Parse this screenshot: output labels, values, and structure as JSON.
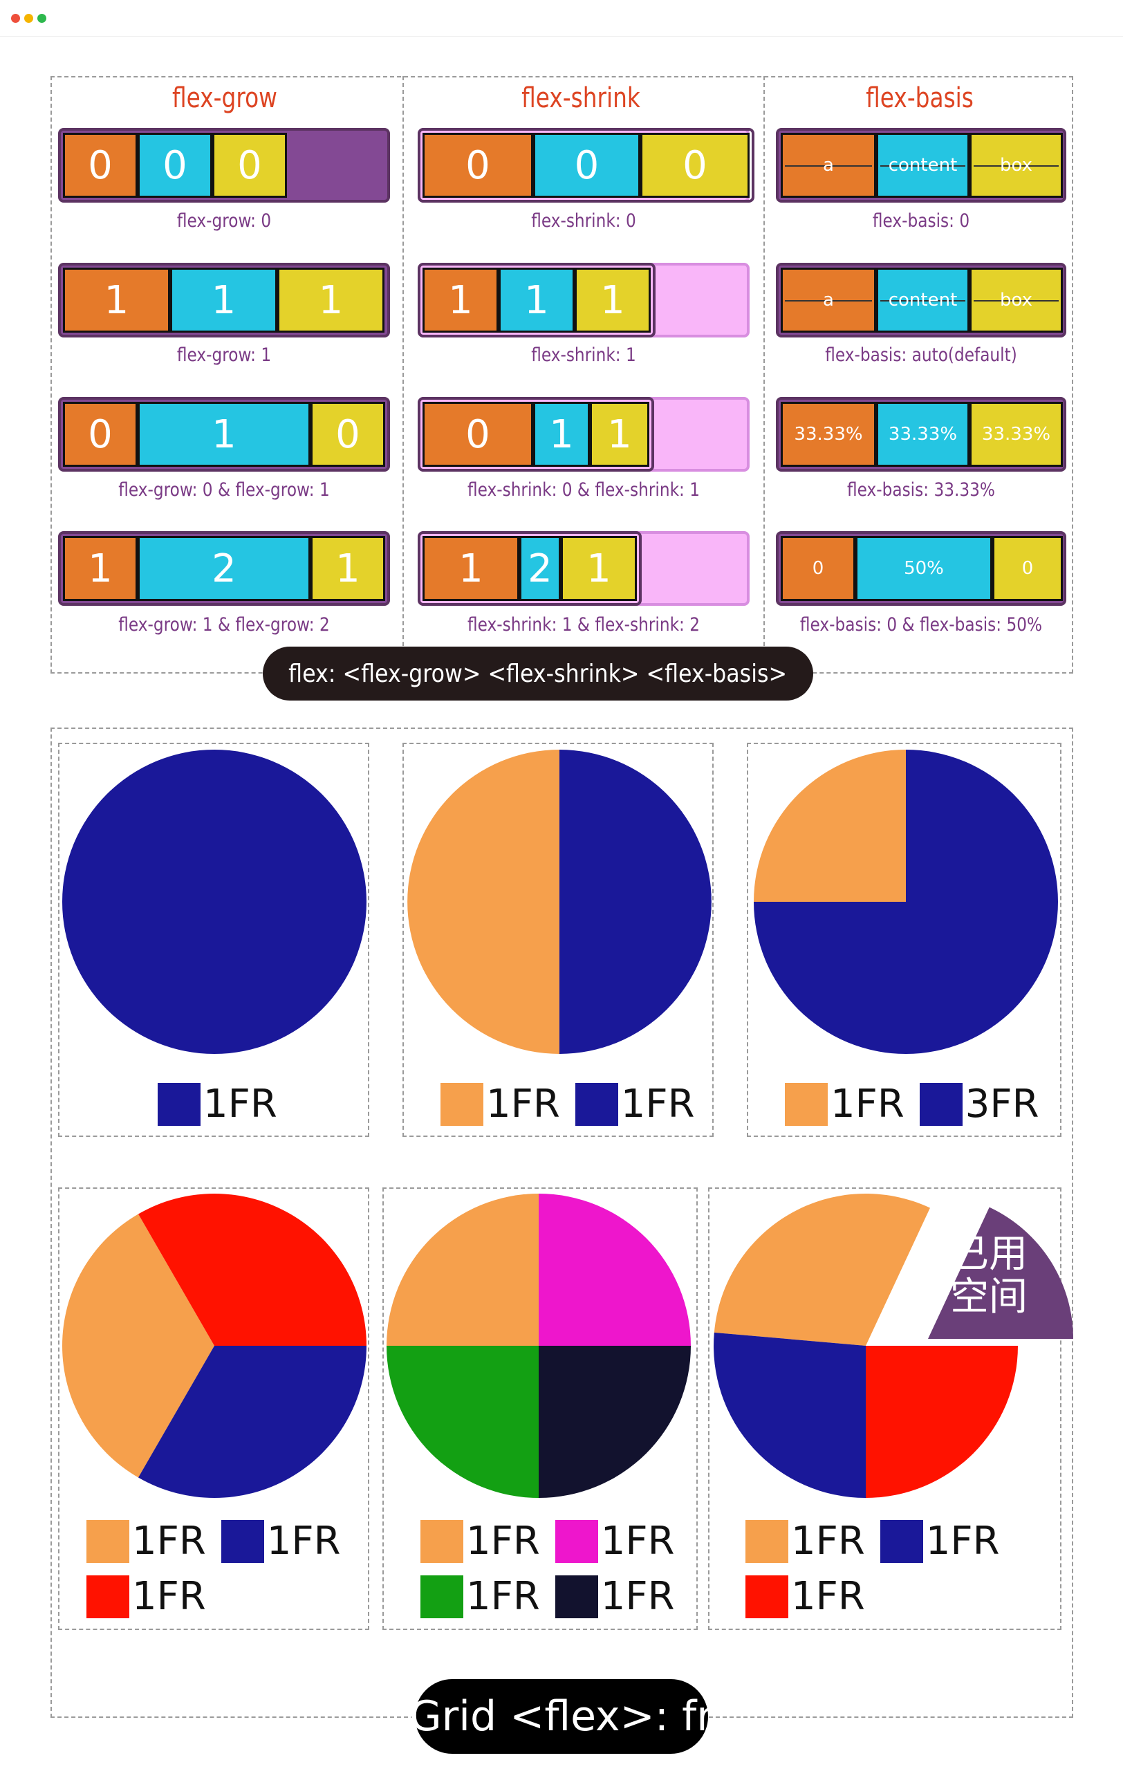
{
  "window": {
    "dots": [
      "#ee4f3b",
      "#f5b400",
      "#2db84d"
    ]
  },
  "flex_panel": {
    "columns": [
      {
        "title": "flex-grow",
        "rows": [
          {
            "caption": "flex-grow: 0",
            "container_fill": "#834994",
            "items": [
              {
                "label": "0",
                "color": "#e57a2a"
              },
              {
                "label": "0",
                "color": "#25c5e2"
              },
              {
                "label": "0",
                "color": "#e4d22a"
              }
            ]
          },
          {
            "caption": "flex-grow: 1",
            "container_fill": "#834994",
            "items": [
              {
                "label": "1",
                "color": "#e57a2a"
              },
              {
                "label": "1",
                "color": "#25c5e2"
              },
              {
                "label": "1",
                "color": "#e4d22a"
              }
            ]
          },
          {
            "caption": "flex-grow: 0 & flex-grow: 1",
            "container_fill": "#834994",
            "items": [
              {
                "label": "0",
                "color": "#e57a2a"
              },
              {
                "label": "1",
                "color": "#25c5e2"
              },
              {
                "label": "0",
                "color": "#e4d22a"
              }
            ]
          },
          {
            "caption": "flex-grow: 1 & flex-grow: 2",
            "container_fill": "#834994",
            "items": [
              {
                "label": "1",
                "color": "#e57a2a"
              },
              {
                "label": "2",
                "color": "#25c5e2"
              },
              {
                "label": "1",
                "color": "#e4d22a"
              }
            ]
          }
        ]
      },
      {
        "title": "flex-shrink",
        "rows": [
          {
            "caption": "flex-shrink: 0",
            "container_fill": "#f9b6f9",
            "items": [
              {
                "label": "0",
                "color": "#e57a2a"
              },
              {
                "label": "0",
                "color": "#25c5e2"
              },
              {
                "label": "0",
                "color": "#e4d22a"
              }
            ]
          },
          {
            "caption": "flex-shrink: 1",
            "container_fill": "#f9b6f9",
            "items": [
              {
                "label": "1",
                "color": "#e57a2a"
              },
              {
                "label": "1",
                "color": "#25c5e2"
              },
              {
                "label": "1",
                "color": "#e4d22a"
              }
            ]
          },
          {
            "caption": "flex-shrink: 0 & flex-shrink: 1",
            "container_fill": "#f9b6f9",
            "items": [
              {
                "label": "0",
                "color": "#e57a2a"
              },
              {
                "label": "1",
                "color": "#25c5e2"
              },
              {
                "label": "1",
                "color": "#e4d22a"
              }
            ]
          },
          {
            "caption": "flex-shrink: 1 & flex-shrink: 2",
            "container_fill": "#f9b6f9",
            "items": [
              {
                "label": "1",
                "color": "#e57a2a"
              },
              {
                "label": "2",
                "color": "#25c5e2"
              },
              {
                "label": "1",
                "color": "#e4d22a"
              }
            ]
          }
        ]
      },
      {
        "title": "flex-basis",
        "rows": [
          {
            "caption": "flex-basis: 0",
            "container_fill": "#834994",
            "items": [
              {
                "label": "a",
                "color": "#e57a2a"
              },
              {
                "label": "content",
                "color": "#25c5e2"
              },
              {
                "label": "box",
                "color": "#e4d22a"
              }
            ]
          },
          {
            "caption": "flex-basis: auto(default)",
            "container_fill": "#834994",
            "items": [
              {
                "label": "a",
                "color": "#e57a2a"
              },
              {
                "label": "content",
                "color": "#25c5e2"
              },
              {
                "label": "box",
                "color": "#e4d22a"
              }
            ]
          },
          {
            "caption": "flex-basis: 33.33%",
            "container_fill": "#834994",
            "items": [
              {
                "label": "33.33%",
                "color": "#e57a2a"
              },
              {
                "label": "33.33%",
                "color": "#25c5e2"
              },
              {
                "label": "33.33%",
                "color": "#e4d22a"
              }
            ]
          },
          {
            "caption": "flex-basis: 0 & flex-basis: 50%",
            "container_fill": "#834994",
            "items": [
              {
                "label": "0",
                "color": "#e57a2a"
              },
              {
                "label": "50%",
                "color": "#25c5e2"
              },
              {
                "label": "0",
                "color": "#e4d22a"
              }
            ]
          }
        ]
      }
    ],
    "footer_label": "flex: <flex-grow> <flex-shrink> <flex-basis>"
  },
  "grid_panel": {
    "footer_label": "Grid <flex>: fr",
    "used_space_label": "已用\n空间",
    "used_space_color": "#6a3f79",
    "charts": [
      {
        "slices": [
          {
            "label": "1FR",
            "value": 1,
            "color": "#1a1899"
          }
        ]
      },
      {
        "slices": [
          {
            "label": "1FR",
            "value": 1,
            "color": "#f6a04c"
          },
          {
            "label": "1FR",
            "value": 1,
            "color": "#1a1899"
          }
        ]
      },
      {
        "slices": [
          {
            "label": "1FR",
            "value": 1,
            "color": "#f6a04c"
          },
          {
            "label": "3FR",
            "value": 3,
            "color": "#1a1899"
          }
        ]
      },
      {
        "slices": [
          {
            "label": "1FR",
            "value": 1,
            "color": "#f6a04c"
          },
          {
            "label": "1FR",
            "value": 1,
            "color": "#1a1899"
          },
          {
            "label": "1FR",
            "value": 1,
            "color": "#ff1200"
          }
        ]
      },
      {
        "slices": [
          {
            "label": "1FR",
            "value": 1,
            "color": "#f6a04c"
          },
          {
            "label": "1FR",
            "value": 1,
            "color": "#ee16cc"
          },
          {
            "label": "1FR",
            "value": 1,
            "color": "#13a013"
          },
          {
            "label": "1FR",
            "value": 1,
            "color": "#12122e"
          }
        ]
      },
      {
        "slices": [
          {
            "label": "1FR",
            "value": 1,
            "color": "#f6a04c"
          },
          {
            "label": "1FR",
            "value": 1,
            "color": "#1a1899"
          },
          {
            "label": "1FR",
            "value": 1,
            "color": "#ff1200"
          }
        ]
      }
    ]
  }
}
